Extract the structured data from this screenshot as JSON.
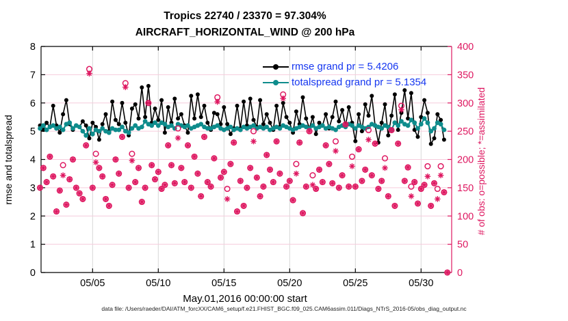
{
  "figure": {
    "title_line1": "Tropics 22740 / 23370 = 97.304%",
    "title_line2": "AIRCRAFT_HORIZONTAL_WIND @ 200 hPa",
    "footer": "data file: /Users/raeder/DAI/ATM_forcXX/CAM6_setup/f.e21.FHIST_BGC.f09_025.CAM6assim.011/Diags_NTrS_2016-05/obs_diag_output.nc"
  },
  "colors": {
    "rmse": "#000000",
    "totalspread": "#0e8c8c",
    "obs": "#de1760",
    "legend_text": "#1536f0",
    "grid_h": "#f6ccdc",
    "grid_v": "#d7d7d7",
    "axis": "#000000"
  },
  "legend": [
    {
      "label": "rmse grand pr = 5.4206",
      "color": "#000000"
    },
    {
      "label": "totalspread grand pr = 5.1354",
      "color": "#0e8c8c"
    }
  ],
  "chart_data": {
    "type": "line",
    "title": "Tropics 22740 / 23370 = 97.304%",
    "subtitle": "AIRCRAFT_HORIZONTAL_WIND @ 200 hPa",
    "xlabel": "May.01,2016 00:00:00 start",
    "ylabel_left": "rmse and totalspread",
    "ylabel_right": "# of obs: o=possible; *=assimilated",
    "grid": true,
    "legend_position": "top-right-inside",
    "rmse_grand_mean": 5.4206,
    "totalspread_grand_mean": 5.1354,
    "obs_possible_total": 23370,
    "obs_assimilated_total": 22740,
    "assimilated_percent": 97.304,
    "x_start_day": 0,
    "x_step_days": 0.25,
    "n_bins": 125,
    "xlim_days": [
      0,
      31.3
    ],
    "x_tick_days": [
      4,
      9,
      14,
      19,
      24,
      29
    ],
    "x_tick_labels": [
      "05/05",
      "05/10",
      "05/15",
      "05/20",
      "05/25",
      "05/30"
    ],
    "ylim_left": [
      0,
      8
    ],
    "yticks_left": [
      0,
      1,
      2,
      3,
      4,
      5,
      6,
      7,
      8
    ],
    "ylim_right": [
      0,
      400
    ],
    "yticks_right": [
      0,
      50,
      100,
      150,
      200,
      250,
      300,
      350,
      400
    ],
    "series": [
      {
        "name": "rmse",
        "axis": "left",
        "marker": "dot",
        "values": [
          5.2,
          5.05,
          5.3,
          5.15,
          5.9,
          5.2,
          4.95,
          5.6,
          6.1,
          5.25,
          5.05,
          5.2,
          5.15,
          5.35,
          5.2,
          4.75,
          5.3,
          5.15,
          4.7,
          5.25,
          5.6,
          5.0,
          6.05,
          5.4,
          5.25,
          6.0,
          5.3,
          4.85,
          5.8,
          5.95,
          5.45,
          6.55,
          5.5,
          6.6,
          5.3,
          5.8,
          5.4,
          6.1,
          4.95,
          5.85,
          5.3,
          6.15,
          5.45,
          5.6,
          5.2,
          4.95,
          6.25,
          5.45,
          6.3,
          5.5,
          5.9,
          5.3,
          5.05,
          5.65,
          5.6,
          5.25,
          5.85,
          5.25,
          4.9,
          5.1,
          5.9,
          5.1,
          6.05,
          5.2,
          6.15,
          5.4,
          5.15,
          6.1,
          5.25,
          5.6,
          5.3,
          5.05,
          5.9,
          5.15,
          6.0,
          5.5,
          5.3,
          4.95,
          5.7,
          5.25,
          6.2,
          5.45,
          5.1,
          5.5,
          4.9,
          5.3,
          5.2,
          5.6,
          5.1,
          5.5,
          6.05,
          5.35,
          5.75,
          5.2,
          5.85,
          5.3,
          4.65,
          5.6,
          5.0,
          5.95,
          5.55,
          6.25,
          5.2,
          4.6,
          5.3,
          5.95,
          4.85,
          5.55,
          6.3,
          5.05,
          5.65,
          6.45,
          5.45,
          6.35,
          5.05,
          4.8,
          5.5,
          6.1,
          5.65,
          4.55,
          4.75,
          5.6,
          5.4,
          4.7,
          null
        ]
      },
      {
        "name": "totalspread",
        "axis": "left",
        "marker": "dot",
        "values": [
          5.1,
          5.2,
          5.05,
          5.15,
          5.2,
          5.1,
          5.15,
          5.05,
          5.25,
          5.3,
          5.1,
          5.2,
          5.15,
          5.0,
          4.85,
          5.1,
          4.9,
          5.05,
          5.0,
          5.1,
          5.0,
          4.95,
          5.1,
          5.05,
          5.05,
          5.15,
          5.0,
          4.95,
          5.1,
          5.2,
          5.1,
          5.15,
          5.35,
          5.25,
          5.2,
          5.3,
          5.2,
          5.3,
          5.25,
          5.15,
          5.2,
          5.1,
          5.25,
          5.2,
          5.15,
          5.2,
          5.1,
          5.15,
          5.2,
          5.25,
          5.15,
          5.1,
          5.1,
          5.15,
          5.2,
          5.1,
          5.05,
          5.1,
          5.15,
          5.05,
          5.1,
          5.05,
          5.15,
          5.1,
          5.15,
          5.2,
          5.1,
          5.15,
          5.1,
          5.15,
          5.05,
          5.1,
          5.15,
          5.1,
          5.2,
          5.15,
          5.1,
          5.05,
          5.1,
          5.15,
          5.2,
          5.15,
          5.1,
          5.2,
          5.1,
          5.15,
          5.2,
          5.1,
          5.15,
          5.1,
          5.05,
          5.15,
          5.2,
          5.15,
          5.25,
          5.2,
          5.1,
          5.2,
          5.15,
          5.1,
          5.15,
          5.25,
          5.2,
          5.15,
          5.1,
          5.2,
          5.15,
          5.05,
          5.3,
          5.2,
          5.35,
          5.25,
          5.2,
          5.4,
          5.3,
          5.1,
          5.25,
          5.45,
          5.3,
          5.0,
          5.1,
          5.3,
          5.25,
          5.05,
          null
        ]
      },
      {
        "name": "possible",
        "axis": "right",
        "marker": "o",
        "values": [
          150,
          185,
          160,
          205,
          170,
          108,
          145,
          190,
          120,
          165,
          200,
          150,
          140,
          130,
          225,
          360,
          150,
          210,
          185,
          170,
          130,
          118,
          155,
          200,
          175,
          240,
          335,
          150,
          210,
          160,
          185,
          125,
          150,
          300,
          190,
          165,
          178,
          148,
          155,
          225,
          190,
          158,
          255,
          185,
          160,
          225,
          150,
          205,
          175,
          135,
          240,
          160,
          152,
          202,
          310,
          168,
          178,
          148,
          192,
          230,
          108,
          162,
          118,
          150,
          185,
          250,
          168,
          135,
          152,
          208,
          182,
          160,
          232,
          175,
          315,
          152,
          162,
          128,
          192,
          230,
          105,
          152,
          250,
          172,
          148,
          182,
          160,
          225,
          192,
          158,
          232,
          150,
          172,
          262,
          152,
          205,
          152,
          218,
          162,
          182,
          252,
          172,
          228,
          148,
          162,
          202,
          135,
          252,
          118,
          228,
          295,
          162,
          186,
          152,
          160,
          122,
          148,
          155,
          188,
          118,
          158,
          148,
          188,
          142,
          0
        ]
      },
      {
        "name": "assimilated",
        "axis": "right",
        "marker": "*",
        "values": [
          150,
          185,
          160,
          205,
          170,
          108,
          145,
          172,
          120,
          165,
          200,
          150,
          140,
          130,
          225,
          352,
          150,
          195,
          185,
          170,
          130,
          118,
          155,
          200,
          175,
          240,
          328,
          150,
          198,
          160,
          185,
          125,
          150,
          300,
          190,
          165,
          178,
          148,
          155,
          225,
          190,
          158,
          238,
          185,
          160,
          225,
          150,
          205,
          175,
          135,
          240,
          160,
          152,
          202,
          302,
          168,
          178,
          130,
          192,
          230,
          108,
          162,
          118,
          150,
          185,
          232,
          168,
          135,
          152,
          208,
          182,
          160,
          232,
          175,
          308,
          152,
          162,
          128,
          175,
          230,
          105,
          152,
          250,
          155,
          148,
          182,
          160,
          225,
          192,
          158,
          215,
          150,
          172,
          262,
          152,
          188,
          152,
          218,
          162,
          182,
          235,
          172,
          228,
          148,
          162,
          185,
          135,
          252,
          118,
          228,
          288,
          162,
          186,
          135,
          160,
          122,
          148,
          155,
          170,
          118,
          158,
          130,
          172,
          142,
          0
        ]
      }
    ]
  }
}
